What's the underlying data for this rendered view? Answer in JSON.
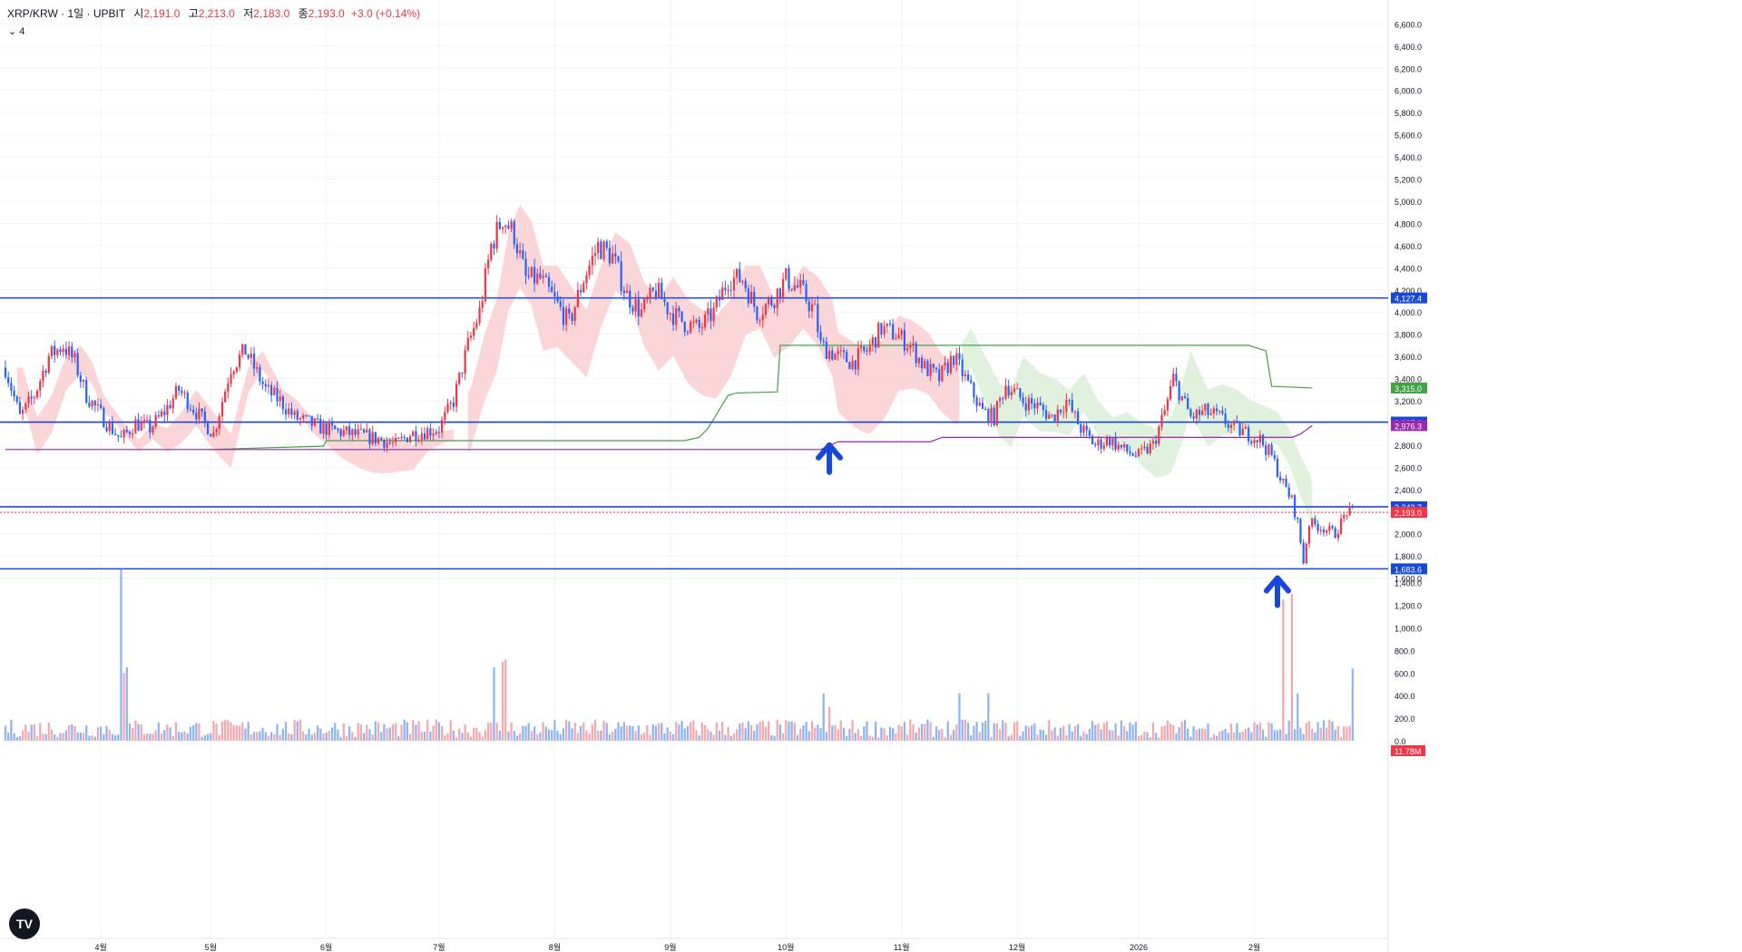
{
  "header": {
    "symbol": "XRP/KRW · 1일 · UPBIT",
    "open_label": "시",
    "open": "2,191.0",
    "high_label": "고",
    "high": "2,213.0",
    "low_label": "저",
    "low": "2,183.0",
    "close_label": "종",
    "close": "2,193.0",
    "change": "+3.0 (+0.14%)",
    "indicators_toggle": "⌄ 4"
  },
  "logo_text": "TV",
  "colors": {
    "up": "#f23645",
    "down": "#2962ff",
    "up_fill": "#f4a7ad",
    "down_fill": "#8db3f4",
    "hline": "#1848d8",
    "green": "#43a047",
    "purple": "#9c27b0",
    "cloud_red": "#f9c8cc",
    "cloud_green": "#d6eed3",
    "grid": "#f0f3fa",
    "axis_text": "#131722"
  },
  "chart_data": {
    "type": "candlestick",
    "y_ticks": [
      "6,600.0",
      "6,400.0",
      "6,200.0",
      "6,000.0",
      "5,800.0",
      "5,600.0",
      "5,400.0",
      "5,200.0",
      "5,000.0",
      "4,800.0",
      "4,600.0",
      "4,400.0",
      "4,200.0",
      "4,000.0",
      "3,800.0",
      "3,600.0",
      "3,400.0",
      "3,200.0",
      "3,000.0",
      "2,800.0",
      "2,600.0",
      "2,400.0",
      "2,200.0",
      "2,000.0",
      "1,800.0",
      "1,600.0"
    ],
    "volume_ticks": [
      "1,400.0",
      "1,200.0",
      "1,000.0",
      "800.0",
      "600.0",
      "400.0",
      "200.0",
      "0.0"
    ],
    "x_ticks": [
      "4월",
      "5월",
      "6월",
      "7월",
      "8월",
      "9월",
      "10월",
      "11월",
      "12월",
      "2026",
      "2월"
    ],
    "ylim": [
      1550,
      6650
    ],
    "horizontal_lines": [
      {
        "price": 4127.4,
        "label": "4,127.4"
      },
      {
        "price": 3007.3,
        "label": "3,007.3"
      },
      {
        "price": 2243.7,
        "label": "2,243.7"
      },
      {
        "price": 1683.6,
        "label": "1,683.6"
      }
    ],
    "price_labels": [
      {
        "price": 3315.0,
        "label": "3,315.0",
        "color": "green"
      },
      {
        "price": 2976.3,
        "label": "2,976.3",
        "color": "purple"
      },
      {
        "price": 2193.0,
        "label": "2,193.0",
        "color": "up"
      }
    ],
    "volume_label": "11.78M",
    "price_keypoints": [
      [
        0,
        3500
      ],
      [
        5,
        3050
      ],
      [
        10,
        3250
      ],
      [
        15,
        3600
      ],
      [
        20,
        3700
      ],
      [
        24,
        3550
      ],
      [
        28,
        3250
      ],
      [
        35,
        3000
      ],
      [
        40,
        2850
      ],
      [
        45,
        3000
      ],
      [
        50,
        2950
      ],
      [
        55,
        3100
      ],
      [
        60,
        3300
      ],
      [
        66,
        3100
      ],
      [
        72,
        2900
      ],
      [
        78,
        3500
      ],
      [
        83,
        3650
      ],
      [
        90,
        3300
      ],
      [
        95,
        3200
      ],
      [
        100,
        3050
      ],
      [
        110,
        2950
      ],
      [
        120,
        2900
      ],
      [
        130,
        2850
      ],
      [
        135,
        2800
      ],
      [
        140,
        2900
      ],
      [
        150,
        2950
      ],
      [
        155,
        3200
      ],
      [
        160,
        3700
      ],
      [
        164,
        4000
      ],
      [
        168,
        4600
      ],
      [
        172,
        4850
      ],
      [
        176,
        4700
      ],
      [
        180,
        4300
      ],
      [
        185,
        4300
      ],
      [
        190,
        4100
      ],
      [
        195,
        3900
      ],
      [
        200,
        4300
      ],
      [
        205,
        4600
      ],
      [
        210,
        4500
      ],
      [
        215,
        4150
      ],
      [
        220,
        4000
      ],
      [
        225,
        4200
      ],
      [
        230,
        4000
      ],
      [
        235,
        3900
      ],
      [
        240,
        3850
      ],
      [
        245,
        4000
      ],
      [
        250,
        4300
      ],
      [
        255,
        4300
      ],
      [
        260,
        4000
      ],
      [
        265,
        4100
      ],
      [
        270,
        4300
      ],
      [
        275,
        4200
      ],
      [
        280,
        4000
      ],
      [
        282,
        3700
      ],
      [
        288,
        3600
      ],
      [
        293,
        3550
      ],
      [
        298,
        3650
      ],
      [
        303,
        3850
      ],
      [
        308,
        3800
      ],
      [
        313,
        3700
      ],
      [
        318,
        3500
      ],
      [
        323,
        3400
      ],
      [
        328,
        3600
      ],
      [
        333,
        3350
      ],
      [
        338,
        3100
      ],
      [
        342,
        3050
      ],
      [
        346,
        3350
      ],
      [
        352,
        3200
      ],
      [
        357,
        3150
      ],
      [
        362,
        3050
      ],
      [
        367,
        3200
      ],
      [
        372,
        2950
      ],
      [
        377,
        2800
      ],
      [
        382,
        2850
      ],
      [
        387,
        2750
      ],
      [
        392,
        2700
      ],
      [
        397,
        2800
      ],
      [
        401,
        3100
      ],
      [
        404,
        3400
      ],
      [
        410,
        3050
      ],
      [
        415,
        3100
      ],
      [
        420,
        3050
      ],
      [
        425,
        2950
      ],
      [
        430,
        2900
      ],
      [
        434,
        2850
      ],
      [
        438,
        2700
      ],
      [
        442,
        2450
      ],
      [
        445,
        2300
      ],
      [
        447,
        2100
      ],
      [
        449,
        1750
      ],
      [
        451,
        2100
      ],
      [
        456,
        2050
      ],
      [
        460,
        2000
      ],
      [
        464,
        2200
      ],
      [
        466,
        2193
      ]
    ],
    "volume_spikes": [
      [
        40,
        1520
      ],
      [
        41,
        600
      ],
      [
        42,
        650
      ],
      [
        169,
        650
      ],
      [
        172,
        700
      ],
      [
        173,
        720
      ],
      [
        283,
        420
      ],
      [
        285,
        300
      ],
      [
        330,
        420
      ],
      [
        340,
        420
      ],
      [
        442,
        1250
      ],
      [
        445,
        1300
      ],
      [
        447,
        420
      ],
      [
        466,
        640
      ]
    ],
    "green_line": [
      [
        70,
        2760
      ],
      [
        110,
        2790
      ],
      [
        111,
        2840
      ],
      [
        235,
        2840
      ],
      [
        240,
        2870
      ],
      [
        243,
        2950
      ],
      [
        250,
        3250
      ],
      [
        253,
        3270
      ],
      [
        267,
        3280
      ],
      [
        268,
        3700
      ],
      [
        430,
        3700
      ],
      [
        436,
        3650
      ],
      [
        438,
        3330
      ],
      [
        452,
        3315
      ]
    ],
    "purple_line": [
      [
        0,
        2760
      ],
      [
        282,
        2760
      ],
      [
        288,
        2830
      ],
      [
        320,
        2830
      ],
      [
        324,
        2870
      ],
      [
        445,
        2870
      ],
      [
        448,
        2900
      ],
      [
        452,
        2976
      ]
    ],
    "arrows": [
      {
        "index": 285,
        "price": 2800
      },
      {
        "index": 440,
        "price": 1600
      }
    ]
  }
}
